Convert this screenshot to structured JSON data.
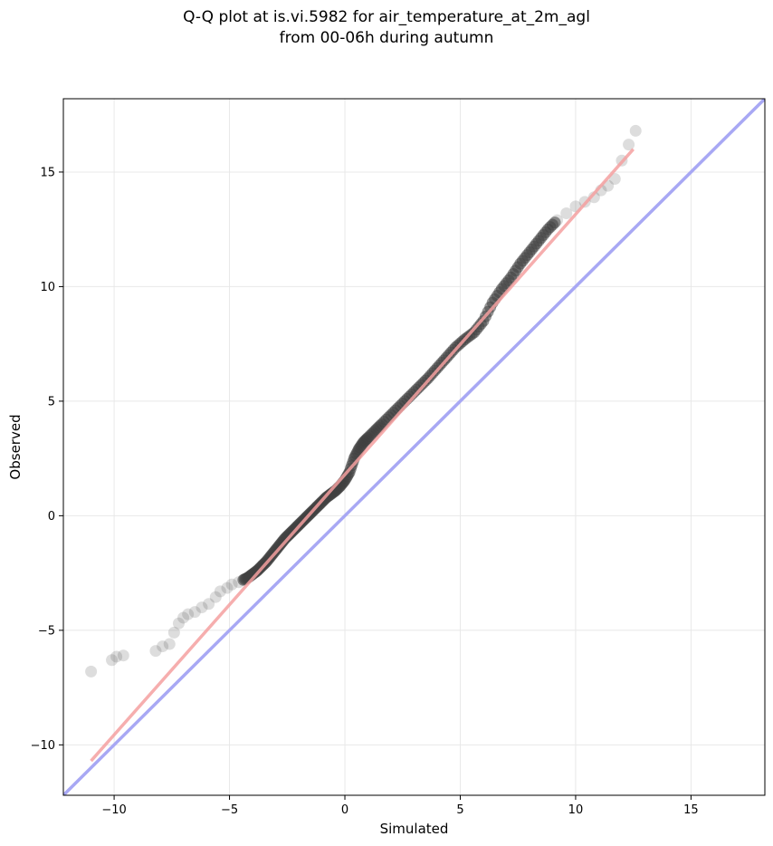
{
  "chart_data": {
    "type": "scatter",
    "title_lines": [
      "Q-Q plot at is.vi.5982 for air_temperature_at_2m_agl",
      "from 00-06h during autumn"
    ],
    "xlabel": "Simulated",
    "ylabel": "Observed",
    "xlim": [
      -12.2,
      18.2
    ],
    "ylim": [
      -12.2,
      18.2
    ],
    "xticks": [
      -10,
      -5,
      0,
      5,
      10,
      15
    ],
    "yticks": [
      -10,
      -5,
      0,
      5,
      10,
      15
    ],
    "xtick_labels": [
      "−10",
      "−5",
      "0",
      "5",
      "10",
      "15"
    ],
    "ytick_labels": [
      "−10",
      "−5",
      "0",
      "5",
      "10",
      "15"
    ],
    "grid": true,
    "colors": {
      "points": "#404040",
      "fit_line": "#f4a0a0",
      "identity_line": "#a8a8f4",
      "grid": "#e8e8e8"
    },
    "fit_line": {
      "x": [
        -11.0,
        12.5
      ],
      "y": [
        -10.7,
        16.0
      ]
    },
    "identity_line": {
      "x": [
        -12.2,
        18.2
      ],
      "y": [
        -12.2,
        18.2
      ]
    },
    "points": {
      "x": [
        -11.0,
        -10.1,
        -9.9,
        -9.6,
        -8.2,
        -7.9,
        -7.6,
        -7.4,
        -7.2,
        -7.0,
        -6.8,
        -6.5,
        -6.2,
        -5.9,
        -5.6,
        -5.4,
        -5.1,
        -4.9,
        -4.6,
        -4.4,
        -4.2,
        -4.0,
        -3.8,
        -3.6,
        -3.4,
        -3.2,
        -3.0,
        -2.8,
        -2.6,
        -2.4,
        -2.2,
        -2.0,
        -1.8,
        -1.6,
        -1.4,
        -1.2,
        -1.0,
        -0.8,
        -0.6,
        -0.4,
        -0.2,
        0.0,
        0.2,
        0.4,
        0.6,
        0.8,
        1.0,
        1.3,
        1.6,
        2.0,
        2.4,
        2.8,
        3.2,
        3.6,
        4.0,
        4.4,
        4.8,
        5.2,
        5.6,
        6.0,
        6.4,
        6.8,
        7.2,
        7.6,
        8.0,
        8.4,
        8.8,
        9.2,
        9.6,
        10.0,
        10.4,
        10.8,
        11.1,
        11.4,
        11.7,
        12.0,
        12.3,
        12.6
      ],
      "y": [
        -6.8,
        -6.3,
        -6.15,
        -6.1,
        -5.9,
        -5.7,
        -5.6,
        -5.1,
        -4.7,
        -4.45,
        -4.3,
        -4.2,
        -4.0,
        -3.85,
        -3.55,
        -3.3,
        -3.15,
        -3.0,
        -2.9,
        -2.8,
        -2.7,
        -2.55,
        -2.4,
        -2.2,
        -2.0,
        -1.75,
        -1.5,
        -1.25,
        -1.0,
        -0.8,
        -0.6,
        -0.4,
        -0.2,
        0.0,
        0.2,
        0.4,
        0.6,
        0.8,
        0.95,
        1.1,
        1.3,
        1.55,
        1.9,
        2.5,
        2.9,
        3.2,
        3.4,
        3.7,
        4.0,
        4.4,
        4.8,
        5.2,
        5.6,
        6.0,
        6.45,
        6.9,
        7.35,
        7.7,
        8.0,
        8.5,
        9.3,
        9.9,
        10.4,
        11.0,
        11.5,
        12.0,
        12.5,
        12.9,
        13.2,
        13.5,
        13.7,
        13.9,
        14.2,
        14.4,
        14.7,
        15.5,
        16.2,
        16.8
      ]
    }
  }
}
